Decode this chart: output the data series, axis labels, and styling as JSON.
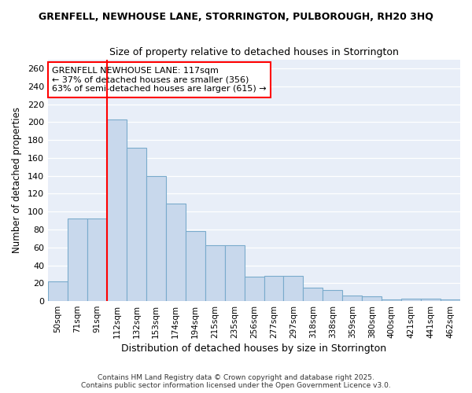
{
  "title_line1": "GRENFELL, NEWHOUSE LANE, STORRINGTON, PULBOROUGH, RH20 3HQ",
  "title_line2": "Size of property relative to detached houses in Storrington",
  "xlabel": "Distribution of detached houses by size in Storrington",
  "ylabel": "Number of detached properties",
  "categories": [
    "50sqm",
    "71sqm",
    "91sqm",
    "112sqm",
    "132sqm",
    "153sqm",
    "174sqm",
    "194sqm",
    "215sqm",
    "235sqm",
    "256sqm",
    "277sqm",
    "297sqm",
    "318sqm",
    "338sqm",
    "359sqm",
    "380sqm",
    "400sqm",
    "421sqm",
    "441sqm",
    "462sqm"
  ],
  "values": [
    22,
    92,
    92,
    203,
    171,
    140,
    109,
    78,
    62,
    62,
    27,
    28,
    28,
    15,
    12,
    6,
    5,
    2,
    3,
    3,
    2
  ],
  "bar_color": "#c8d8ec",
  "bar_edge_color": "#7aabcc",
  "annotation_title": "GRENFELL NEWHOUSE LANE: 117sqm",
  "annotation_line1": "← 37% of detached houses are smaller (356)",
  "annotation_line2": "63% of semi-detached houses are larger (615) →",
  "ylim": [
    0,
    270
  ],
  "yticks": [
    0,
    20,
    40,
    60,
    80,
    100,
    120,
    140,
    160,
    180,
    200,
    220,
    240,
    260
  ],
  "plot_bg_color": "#e8eef8",
  "fig_bg_color": "#ffffff",
  "grid_color": "#ffffff",
  "footer_line1": "Contains HM Land Registry data © Crown copyright and database right 2025.",
  "footer_line2": "Contains public sector information licensed under the Open Government Licence v3.0.",
  "red_line_bar_index": 3
}
